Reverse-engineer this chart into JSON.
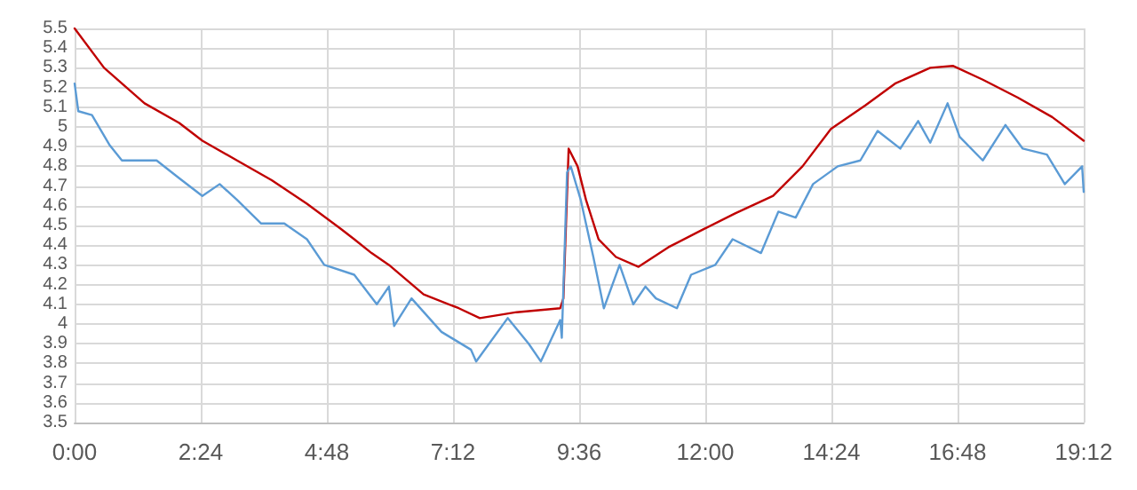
{
  "chart_data": {
    "type": "line",
    "xlim": [
      0,
      19.2
    ],
    "ylim": [
      3.5,
      5.5
    ],
    "xticks": [
      {
        "value": 0,
        "label": "0:00"
      },
      {
        "value": 2.4,
        "label": "2:24"
      },
      {
        "value": 4.8,
        "label": "4:48"
      },
      {
        "value": 7.2,
        "label": "7:12"
      },
      {
        "value": 9.6,
        "label": "9:36"
      },
      {
        "value": 12,
        "label": "12:00"
      },
      {
        "value": 14.4,
        "label": "14:24"
      },
      {
        "value": 16.8,
        "label": "16:48"
      },
      {
        "value": 19.2,
        "label": "19:12"
      }
    ],
    "yticks": [
      3.5,
      3.6,
      3.7,
      3.8,
      3.9,
      4,
      4.1,
      4.2,
      4.3,
      4.4,
      4.5,
      4.6,
      4.7,
      4.8,
      4.9,
      5,
      5.1,
      5.2,
      5.3,
      5.4,
      5.5
    ],
    "grid": true,
    "marker": "none",
    "line_style": "solid",
    "series": [
      {
        "color": "#c00000",
        "x": [
          0,
          0.56,
          1.33,
          1.99,
          2.43,
          3.09,
          3.75,
          4.42,
          5.08,
          5.32,
          5.65,
          5.98,
          6.64,
          7.31,
          7.71,
          8.41,
          9.24,
          9.3,
          9.4,
          9.57,
          9.73,
          9.97,
          10.3,
          10.73,
          11.3,
          11.96,
          12.56,
          13.29,
          13.85,
          14.39,
          15.05,
          15.61,
          16.28,
          16.71,
          17.28,
          17.94,
          18.6,
          19.2
        ],
        "values": [
          5.5,
          5.3,
          5.12,
          5.02,
          4.93,
          4.83,
          4.73,
          4.61,
          4.48,
          4.43,
          4.36,
          4.3,
          4.15,
          4.08,
          4.03,
          4.06,
          4.08,
          4.13,
          4.89,
          4.8,
          4.63,
          4.43,
          4.34,
          4.29,
          4.39,
          4.48,
          4.56,
          4.65,
          4.8,
          4.99,
          5.11,
          5.22,
          5.3,
          5.31,
          5.24,
          5.15,
          5.05,
          4.93
        ]
      },
      {
        "color": "#5b9bd5",
        "x": [
          0,
          0.07,
          0.33,
          0.66,
          0.9,
          1.56,
          1.99,
          2.43,
          2.76,
          3.09,
          3.55,
          3.99,
          4.42,
          4.75,
          5.32,
          5.75,
          5.98,
          6.08,
          6.41,
          6.98,
          7.54,
          7.64,
          8.24,
          8.64,
          8.87,
          9.24,
          9.27,
          9.37,
          9.44,
          9.63,
          9.87,
          10.07,
          10.37,
          10.63,
          10.86,
          11.06,
          11.46,
          11.73,
          12.19,
          12.52,
          13.06,
          13.39,
          13.72,
          14.05,
          14.52,
          14.95,
          15.28,
          15.71,
          16.05,
          16.28,
          16.61,
          16.84,
          17.28,
          17.71,
          18.04,
          18.5,
          18.84,
          19.17,
          19.2
        ],
        "values": [
          5.22,
          5.08,
          5.06,
          4.91,
          4.83,
          4.83,
          4.74,
          4.65,
          4.71,
          4.63,
          4.51,
          4.51,
          4.43,
          4.3,
          4.25,
          4.1,
          4.19,
          3.99,
          4.13,
          3.96,
          3.87,
          3.81,
          4.03,
          3.9,
          3.81,
          4.02,
          3.93,
          4.77,
          4.8,
          4.63,
          4.34,
          4.08,
          4.3,
          4.1,
          4.19,
          4.13,
          4.08,
          4.25,
          4.3,
          4.43,
          4.36,
          4.57,
          4.54,
          4.71,
          4.8,
          4.83,
          4.98,
          4.89,
          5.03,
          4.92,
          5.12,
          4.95,
          4.83,
          5.01,
          4.89,
          4.86,
          4.71,
          4.8,
          4.67
        ]
      }
    ]
  }
}
